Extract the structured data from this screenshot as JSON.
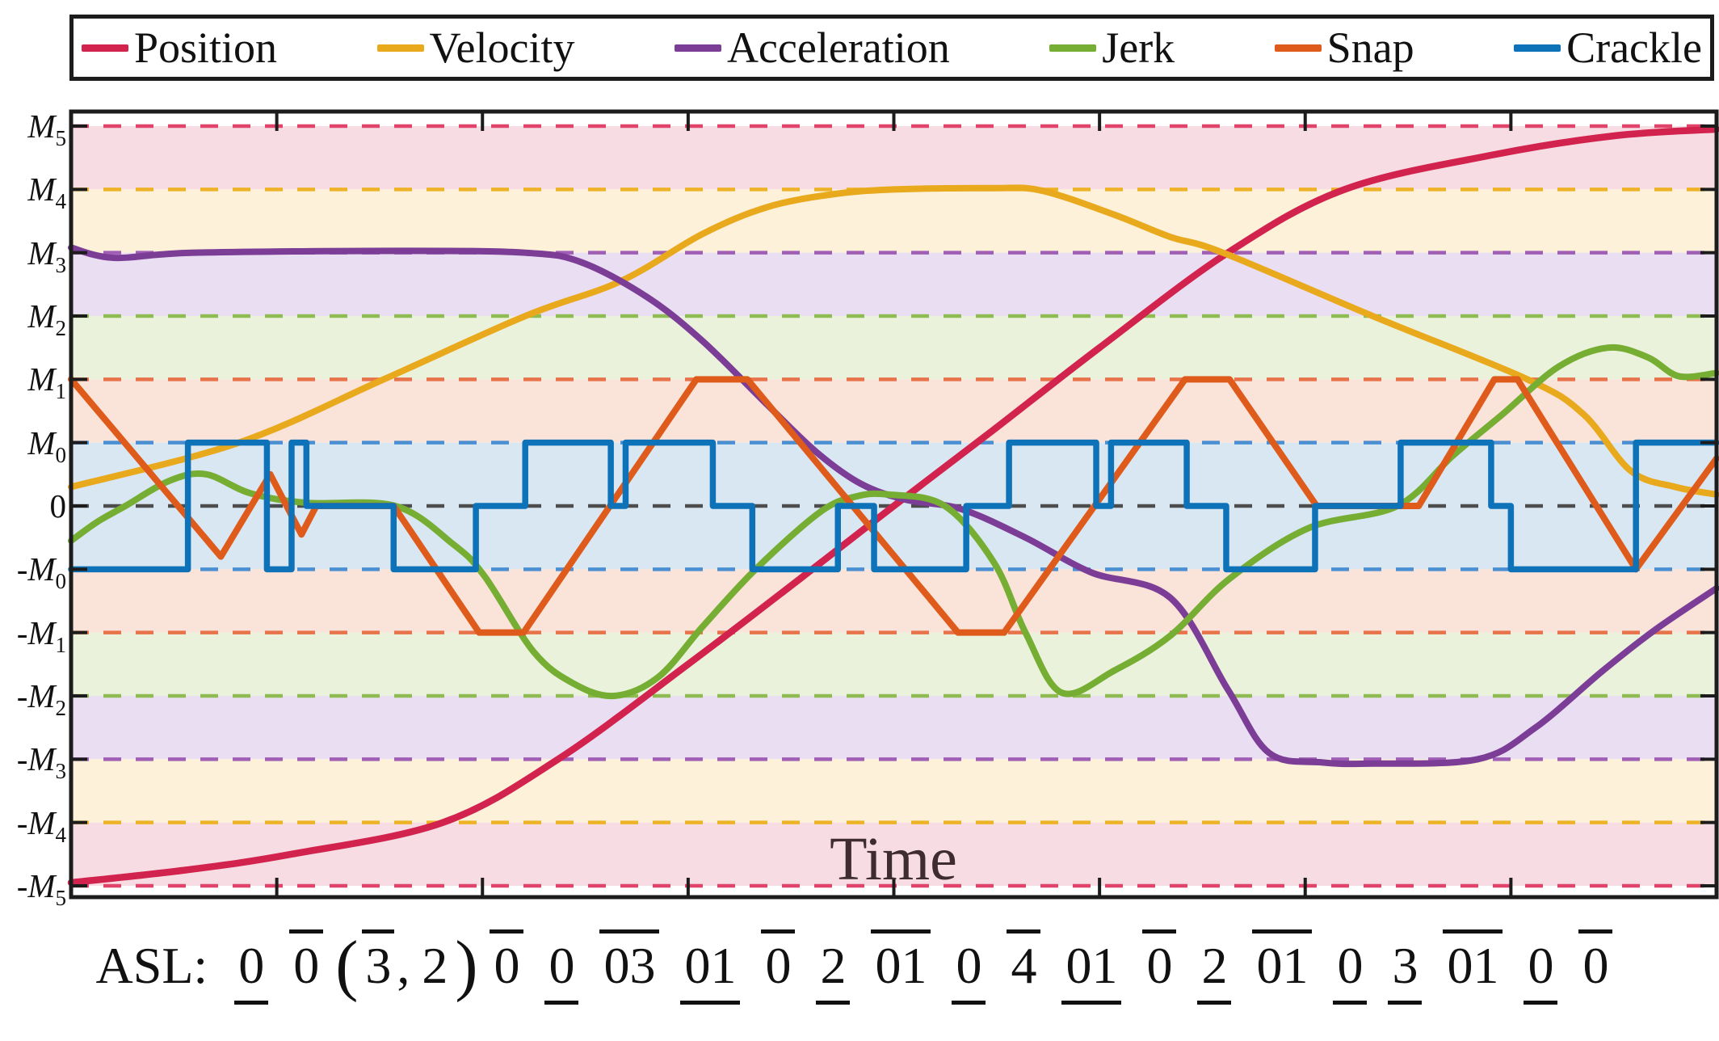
{
  "legend": {
    "entries": [
      {
        "label": "Position",
        "color": "#d2234e"
      },
      {
        "label": "Velocity",
        "color": "#e9a91c"
      },
      {
        "label": "Acceleration",
        "color": "#7c3d97"
      },
      {
        "label": "Jerk",
        "color": "#76ad33"
      },
      {
        "label": "Snap",
        "color": "#de5b1c"
      },
      {
        "label": "Crackle",
        "color": "#0e72b9"
      }
    ]
  },
  "axis": {
    "ytick_labels": [
      "M5",
      "M4",
      "M3",
      "M2",
      "M1",
      "M0",
      "0",
      "-M0",
      "-M1",
      "-M2",
      "-M3",
      "-M4",
      "-M5"
    ],
    "ytick_levels": [
      6,
      5,
      4,
      3,
      2,
      1,
      0,
      -1,
      -2,
      -3,
      -4,
      -5,
      -6
    ]
  },
  "asl": {
    "prefix": "ASL:",
    "tokens": [
      {
        "text": "0",
        "bar": "under",
        "kind": "num"
      },
      {
        "text": "0",
        "bar": "over",
        "kind": "num"
      },
      {
        "text": "(",
        "bar": "none",
        "kind": "paren"
      },
      {
        "text": "3",
        "bar": "over",
        "kind": "tight"
      },
      {
        "text": ",",
        "bar": "none",
        "kind": "comma"
      },
      {
        "text": "2",
        "bar": "none",
        "kind": "tight"
      },
      {
        "text": ")",
        "bar": "none",
        "kind": "paren"
      },
      {
        "text": "0",
        "bar": "over",
        "kind": "num"
      },
      {
        "text": "0",
        "bar": "under",
        "kind": "num"
      },
      {
        "text": "03",
        "bar": "over",
        "kind": "num"
      },
      {
        "text": "01",
        "bar": "under",
        "kind": "num"
      },
      {
        "text": "0",
        "bar": "over",
        "kind": "num"
      },
      {
        "text": "2",
        "bar": "under",
        "kind": "num"
      },
      {
        "text": "01",
        "bar": "over",
        "kind": "num"
      },
      {
        "text": "0",
        "bar": "under",
        "kind": "num"
      },
      {
        "text": "4",
        "bar": "over",
        "kind": "num"
      },
      {
        "text": "01",
        "bar": "under",
        "kind": "num"
      },
      {
        "text": "0",
        "bar": "over",
        "kind": "num"
      },
      {
        "text": "2",
        "bar": "under",
        "kind": "num"
      },
      {
        "text": "01",
        "bar": "over",
        "kind": "num"
      },
      {
        "text": "0",
        "bar": "under",
        "kind": "num"
      },
      {
        "text": "3",
        "bar": "under",
        "kind": "num"
      },
      {
        "text": "01",
        "bar": "over",
        "kind": "num"
      },
      {
        "text": "0",
        "bar": "under",
        "kind": "num"
      },
      {
        "text": "0",
        "bar": "over",
        "kind": "num"
      }
    ]
  },
  "chart_data": {
    "type": "line",
    "title": "",
    "xlabel": "Time",
    "ylabel": "",
    "x_domain": [
      0,
      1
    ],
    "y_units": "grid levels: 1=M0, 2=M1, 3=M2, 4=M3, 5=M4, 6=M5 (negative mirrored)",
    "ylim": [
      -6.3,
      6.3
    ],
    "grid": "dashed horizontal level lines at every labeled level",
    "legend_position": "top outside",
    "ytick_labels": [
      "M5",
      "M4",
      "M3",
      "M2",
      "M1",
      "M0",
      "0",
      "-M0",
      "-M1",
      "-M2",
      "-M3",
      "-M4",
      "-M5"
    ],
    "bands": [
      {
        "from": 6,
        "to": 5,
        "color": "#f7dde3"
      },
      {
        "from": 5,
        "to": 4,
        "color": "#fdf1d9"
      },
      {
        "from": 4,
        "to": 3,
        "color": "#eadef2"
      },
      {
        "from": 3,
        "to": 2,
        "color": "#ebf2dc"
      },
      {
        "from": 2,
        "to": 1,
        "color": "#fae3d8"
      },
      {
        "from": 1,
        "to": -1,
        "color": "#d9e7f3"
      },
      {
        "from": -1,
        "to": -2,
        "color": "#fae3d8"
      },
      {
        "from": -2,
        "to": -3,
        "color": "#ebf2dc"
      },
      {
        "from": -3,
        "to": -4,
        "color": "#eadef2"
      },
      {
        "from": -4,
        "to": -5,
        "color": "#fdf1d9"
      },
      {
        "from": -5,
        "to": -6,
        "color": "#f7dde3"
      }
    ],
    "gridlines": [
      {
        "level": 6,
        "color": "#e0446b"
      },
      {
        "level": 5,
        "color": "#eeb227"
      },
      {
        "level": 4,
        "color": "#a05fb5"
      },
      {
        "level": 3,
        "color": "#8ebc53"
      },
      {
        "level": 2,
        "color": "#e8724a"
      },
      {
        "level": 1,
        "color": "#4a8fd2"
      },
      {
        "level": 0,
        "color": "#4d4d4d"
      },
      {
        "level": -1,
        "color": "#4a8fd2"
      },
      {
        "level": -2,
        "color": "#e8724a"
      },
      {
        "level": -3,
        "color": "#8ebc53"
      },
      {
        "level": -4,
        "color": "#a05fb5"
      },
      {
        "level": -5,
        "color": "#eeb227"
      },
      {
        "level": -6,
        "color": "#e0446b"
      }
    ],
    "series": [
      {
        "name": "Position",
        "color": "#d2234e",
        "smooth": true,
        "width": 8.5,
        "points": [
          [
            0,
            -5.95
          ],
          [
            0.07,
            -5.75
          ],
          [
            0.134,
            -5.5
          ],
          [
            0.226,
            -5.0
          ],
          [
            0.296,
            -4.0
          ],
          [
            0.375,
            -2.5
          ],
          [
            0.443,
            -1.15
          ],
          [
            0.5,
            0
          ],
          [
            0.558,
            1.15
          ],
          [
            0.625,
            2.5
          ],
          [
            0.703,
            4.0
          ],
          [
            0.774,
            5.0
          ],
          [
            0.865,
            5.55
          ],
          [
            0.939,
            5.85
          ],
          [
            1,
            5.95
          ]
        ]
      },
      {
        "name": "Velocity",
        "color": "#e9a91c",
        "smooth": true,
        "width": 8,
        "points": [
          [
            0,
            0.3
          ],
          [
            0.102,
            1.0
          ],
          [
            0.19,
            2.0
          ],
          [
            0.276,
            3.0
          ],
          [
            0.334,
            3.55
          ],
          [
            0.384,
            4.3
          ],
          [
            0.423,
            4.72
          ],
          [
            0.462,
            4.92
          ],
          [
            0.5,
            5.0
          ],
          [
            0.56,
            5.02
          ],
          [
            0.59,
            4.98
          ],
          [
            0.634,
            4.6
          ],
          [
            0.668,
            4.25
          ],
          [
            0.7,
            4.0
          ],
          [
            0.791,
            3.0
          ],
          [
            0.885,
            2.0
          ],
          [
            0.919,
            1.45
          ],
          [
            0.948,
            0.55
          ],
          [
            0.975,
            0.3
          ],
          [
            1,
            0.18
          ]
        ]
      },
      {
        "name": "Acceleration",
        "color": "#7c3d97",
        "smooth": true,
        "width": 8,
        "points": [
          [
            0,
            4.08
          ],
          [
            0.026,
            3.92
          ],
          [
            0.075,
            4.0
          ],
          [
            0.2,
            4.03
          ],
          [
            0.276,
            4.0
          ],
          [
            0.31,
            3.85
          ],
          [
            0.35,
            3.3
          ],
          [
            0.384,
            2.6
          ],
          [
            0.423,
            1.6
          ],
          [
            0.453,
            0.85
          ],
          [
            0.48,
            0.35
          ],
          [
            0.507,
            0.1
          ],
          [
            0.541,
            -0.05
          ],
          [
            0.58,
            -0.5
          ],
          [
            0.62,
            -1.05
          ],
          [
            0.668,
            -1.45
          ],
          [
            0.703,
            -2.9
          ],
          [
            0.728,
            -3.9
          ],
          [
            0.76,
            -4.05
          ],
          [
            0.791,
            -4.07
          ],
          [
            0.855,
            -4.0
          ],
          [
            0.89,
            -3.5
          ],
          [
            0.931,
            -2.6
          ],
          [
            0.963,
            -1.95
          ],
          [
            1,
            -1.3
          ]
        ]
      },
      {
        "name": "Jerk",
        "color": "#76ad33",
        "smooth": true,
        "width": 8,
        "points": [
          [
            0,
            -0.55
          ],
          [
            0.016,
            -0.25
          ],
          [
            0.033,
            0
          ],
          [
            0.06,
            0.4
          ],
          [
            0.082,
            0.5
          ],
          [
            0.109,
            0.2
          ],
          [
            0.143,
            0.05
          ],
          [
            0.197,
            0
          ],
          [
            0.232,
            -0.6
          ],
          [
            0.251,
            -1.1
          ],
          [
            0.281,
            -2.3
          ],
          [
            0.305,
            -2.8
          ],
          [
            0.33,
            -3.0
          ],
          [
            0.357,
            -2.7
          ],
          [
            0.384,
            -1.9
          ],
          [
            0.416,
            -1.0
          ],
          [
            0.455,
            -0.1
          ],
          [
            0.477,
            0.15
          ],
          [
            0.497,
            0.18
          ],
          [
            0.531,
            0
          ],
          [
            0.561,
            -0.9
          ],
          [
            0.58,
            -2.0
          ],
          [
            0.602,
            -2.95
          ],
          [
            0.634,
            -2.6
          ],
          [
            0.668,
            -2.05
          ],
          [
            0.704,
            -1.15
          ],
          [
            0.752,
            -0.35
          ],
          [
            0.806,
            0
          ],
          [
            0.84,
            0.8
          ],
          [
            0.87,
            1.45
          ],
          [
            0.904,
            2.2
          ],
          [
            0.934,
            2.5
          ],
          [
            0.958,
            2.35
          ],
          [
            0.977,
            2.05
          ],
          [
            1,
            2.1
          ]
        ]
      },
      {
        "name": "Snap",
        "color": "#de5b1c",
        "smooth": false,
        "width": 8,
        "points": [
          [
            0,
            2
          ],
          [
            0.091,
            -0.8
          ],
          [
            0.121,
            0.5
          ],
          [
            0.14,
            -0.45
          ],
          [
            0.149,
            0
          ],
          [
            0.196,
            0
          ],
          [
            0.248,
            -2
          ],
          [
            0.275,
            -2
          ],
          [
            0.38,
            2
          ],
          [
            0.411,
            2
          ],
          [
            0.539,
            -2
          ],
          [
            0.567,
            -2
          ],
          [
            0.677,
            2
          ],
          [
            0.704,
            2
          ],
          [
            0.757,
            0
          ],
          [
            0.819,
            0
          ],
          [
            0.865,
            2
          ],
          [
            0.879,
            2
          ],
          [
            0.951,
            -1
          ],
          [
            1,
            0.75
          ]
        ]
      },
      {
        "name": "Crackle",
        "color": "#0e72b9",
        "smooth": false,
        "width": 7.5,
        "steps": [
          [
            0,
            0.071,
            -1
          ],
          [
            0.071,
            0.119,
            1
          ],
          [
            0.119,
            0.134,
            -1
          ],
          [
            0.134,
            0.143,
            1
          ],
          [
            0.143,
            0.196,
            0
          ],
          [
            0.196,
            0.246,
            -1
          ],
          [
            0.246,
            0.276,
            0
          ],
          [
            0.276,
            0.328,
            1
          ],
          [
            0.328,
            0.337,
            0
          ],
          [
            0.337,
            0.39,
            1
          ],
          [
            0.39,
            0.414,
            0
          ],
          [
            0.414,
            0.466,
            -1
          ],
          [
            0.466,
            0.488,
            0
          ],
          [
            0.488,
            0.544,
            -1
          ],
          [
            0.544,
            0.57,
            0
          ],
          [
            0.57,
            0.623,
            1
          ],
          [
            0.623,
            0.632,
            0
          ],
          [
            0.632,
            0.678,
            1
          ],
          [
            0.678,
            0.702,
            0
          ],
          [
            0.702,
            0.756,
            -1
          ],
          [
            0.756,
            0.808,
            0
          ],
          [
            0.808,
            0.863,
            1
          ],
          [
            0.863,
            0.875,
            0
          ],
          [
            0.875,
            0.951,
            -1
          ],
          [
            0.951,
            1,
            1
          ]
        ]
      }
    ]
  }
}
